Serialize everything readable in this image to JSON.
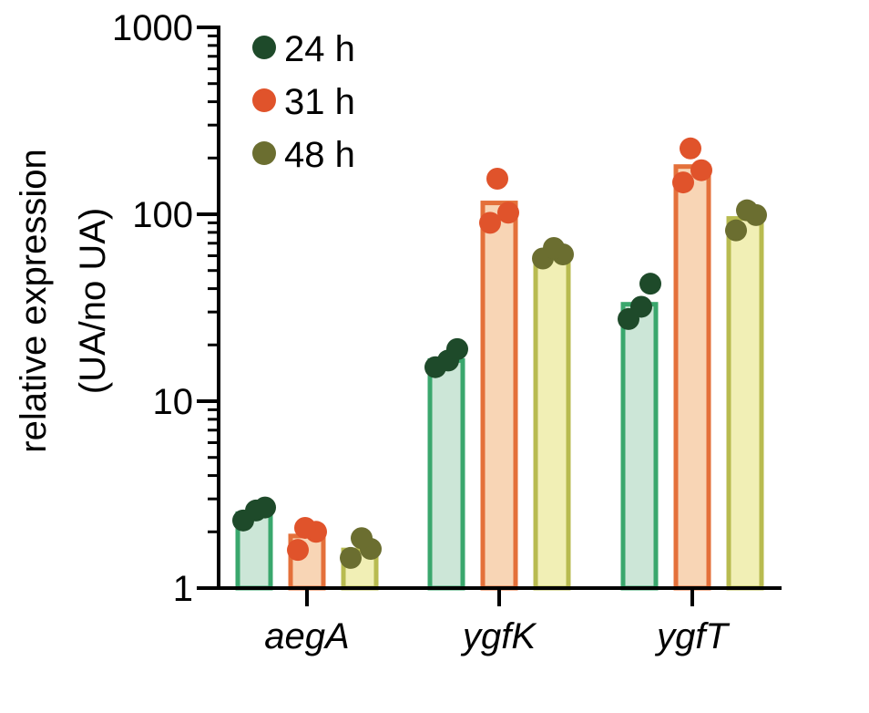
{
  "chart_data": {
    "type": "bar",
    "title": "",
    "xlabel": "",
    "ylabel": [
      "relative expression",
      "(UA/no UA)"
    ],
    "yscale": "log",
    "ylim": [
      1,
      1000
    ],
    "yticks": [
      {
        "value": 1,
        "label": "1"
      },
      {
        "value": 10,
        "label": "10"
      },
      {
        "value": 100,
        "label": "100"
      },
      {
        "value": 1000,
        "label": "1000"
      }
    ],
    "grid": false,
    "legend_position": "top-left",
    "categories": [
      "aegA",
      "ygfK",
      "ygfT"
    ],
    "series": [
      {
        "name": "24 h",
        "bar_fill": "#cce6d7",
        "bar_edge": "#3aa76d",
        "dot_color": "#1e4a2a",
        "values": [
          2.5,
          16.5,
          33
        ],
        "points": [
          [
            2.3,
            2.6,
            2.7
          ],
          [
            15.2,
            16.5,
            19.0
          ],
          [
            27.5,
            32.0,
            42.5
          ]
        ]
      },
      {
        "name": "31 h",
        "bar_fill": "#f8d5b5",
        "bar_edge": "#e4703a",
        "dot_color": "#e0532b",
        "values": [
          1.9,
          115,
          180
        ],
        "points": [
          [
            1.6,
            2.0,
            2.1
          ],
          [
            90,
            102,
            155
          ],
          [
            148,
            172,
            225
          ]
        ]
      },
      {
        "name": "48 h",
        "bar_fill": "#f1efb5",
        "bar_edge": "#b8bb50",
        "dot_color": "#6b6e30",
        "values": [
          1.6,
          60,
          95
        ],
        "points": [
          [
            1.45,
            1.62,
            1.85
          ],
          [
            58,
            61,
            66
          ],
          [
            82,
            99,
            105
          ]
        ]
      }
    ]
  }
}
